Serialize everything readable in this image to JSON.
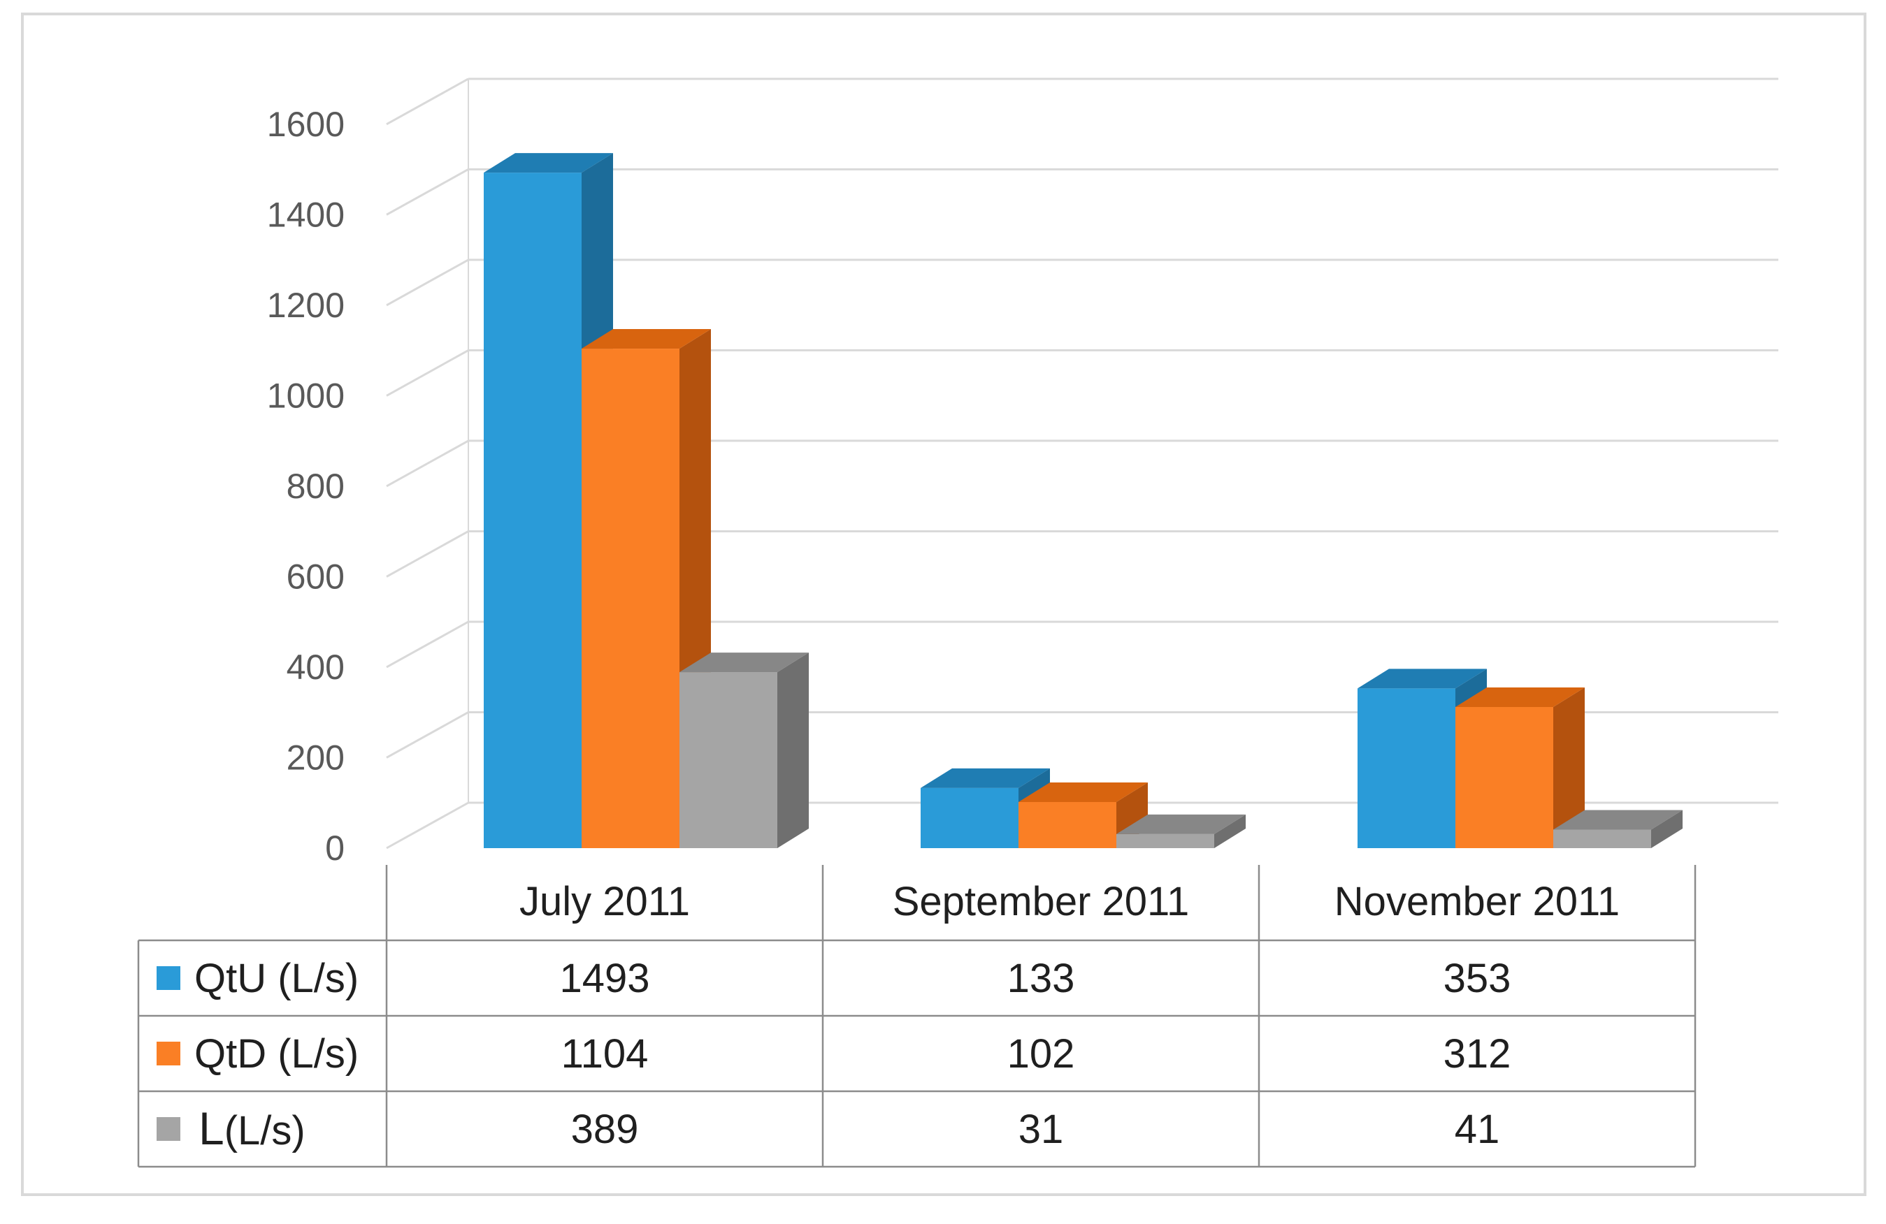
{
  "chart_data": {
    "type": "bar",
    "title": "",
    "xlabel": "",
    "ylabel": "",
    "ylim": [
      0,
      1600
    ],
    "yticks": [
      0,
      200,
      400,
      600,
      800,
      1000,
      1200,
      1400,
      1600
    ],
    "grid": true,
    "style": "3d-clustered-column-with-data-table",
    "categories": [
      "July 2011",
      "September 2011",
      "November 2011"
    ],
    "series": [
      {
        "name": "QtU (L/s)",
        "values": [
          1493,
          133,
          353
        ],
        "color": "#2a9bd8",
        "side_color": "#1c6c9a",
        "top_color": "#1f7db3"
      },
      {
        "name": "QtD (L/s)",
        "values": [
          1104,
          102,
          312
        ],
        "color": "#fa7f25",
        "side_color": "#b4520e",
        "top_color": "#d8640f"
      },
      {
        "name": "L(L/s)",
        "legend_main": "L",
        "legend_suffix": "(L/s)",
        "values": [
          389,
          31,
          41
        ],
        "color": "#a5a5a5",
        "side_color": "#6f6f6f",
        "top_color": "#878787"
      }
    ],
    "table": {
      "rows": [
        {
          "label": "QtU (L/s)",
          "cells": [
            "1493",
            "133",
            "353"
          ]
        },
        {
          "label": "QtD (L/s)",
          "cells": [
            "1104",
            "102",
            "312"
          ]
        },
        {
          "label": "L(L/s)",
          "cells": [
            "389",
            "31",
            "41"
          ]
        }
      ]
    }
  }
}
